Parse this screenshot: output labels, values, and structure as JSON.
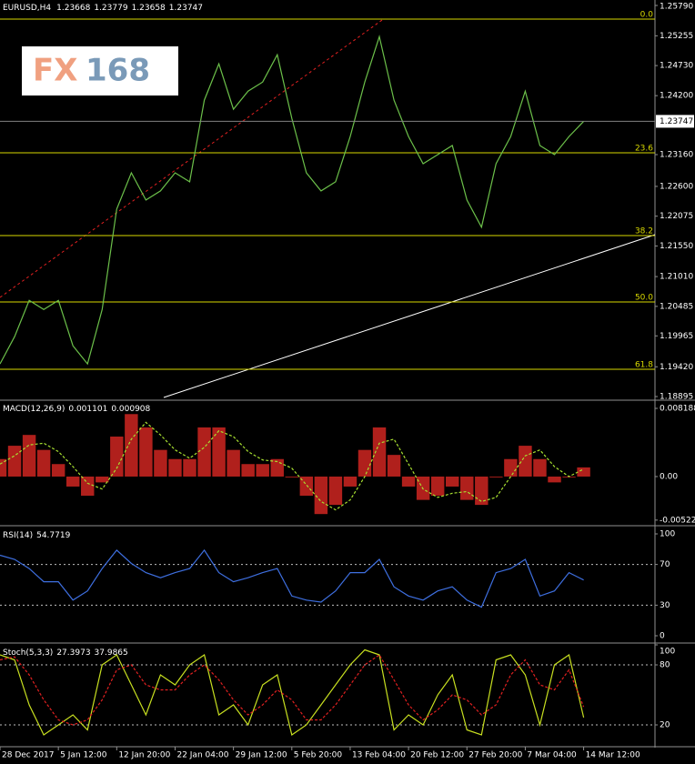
{
  "header": {
    "title": "EURUSD,H4",
    "ohlc": [
      1.23668,
      1.23779,
      1.23658,
      1.23747
    ]
  },
  "logo": {
    "left": "FX",
    "right": "168"
  },
  "chart_data": [
    {
      "type": "line",
      "title": "EURUSD,H4",
      "color": "#6cc04a",
      "x": [
        0,
        9,
        18,
        27,
        36,
        45,
        54,
        63,
        72,
        81,
        90,
        99,
        108,
        117,
        126,
        135,
        144,
        153,
        162,
        171,
        180,
        189,
        198,
        207,
        216,
        225,
        234,
        243,
        252,
        261,
        270,
        279,
        288,
        297,
        306,
        315,
        324,
        333,
        342,
        351,
        360
      ],
      "values": [
        1.1947,
        1.1995,
        1.2059,
        1.2043,
        1.2059,
        1.1979,
        1.1947,
        1.2043,
        1.222,
        1.2284,
        1.2236,
        1.2252,
        1.2284,
        1.2268,
        1.2412,
        1.2476,
        1.2396,
        1.2428,
        1.2444,
        1.2492,
        1.238,
        1.2284,
        1.2252,
        1.2268,
        1.2348,
        1.2444,
        1.2524,
        1.2412,
        1.2348,
        1.23,
        1.2316,
        1.2332,
        1.2236,
        1.2188,
        1.23,
        1.2348,
        1.2428,
        1.2332,
        1.2316,
        1.2348,
        1.23747
      ],
      "xlim": [
        0,
        404
      ],
      "ylim": [
        1.18831,
        1.25886
      ],
      "yticks": [
        {
          "value": 1.2579,
          "label": "1.25790"
        },
        {
          "value": 1.25255,
          "label": "1.25255"
        },
        {
          "value": 1.2473,
          "label": "1.24730"
        },
        {
          "value": 1.242,
          "label": "1.24200"
        },
        {
          "value": 1.2316,
          "label": "1.23160"
        },
        {
          "value": 1.226,
          "label": "1.22600"
        },
        {
          "value": 1.22075,
          "label": "1.22075"
        },
        {
          "value": 1.2155,
          "label": "1.21550"
        },
        {
          "value": 1.2101,
          "label": "1.21010"
        },
        {
          "value": 1.20485,
          "label": "1.20485"
        },
        {
          "value": 1.19965,
          "label": "1.19965"
        },
        {
          "value": 1.1942,
          "label": "1.19420"
        },
        {
          "value": 1.18895,
          "label": "1.18895"
        }
      ],
      "levels": [
        {
          "label": "0.0",
          "value": 1.2555
        },
        {
          "label": "23.6",
          "value": 1.23192
        },
        {
          "label": "38.2",
          "value": 1.21733
        },
        {
          "label": "50.0",
          "value": 1.20563
        },
        {
          "label": "61.8",
          "value": 1.19376
        }
      ],
      "level_color": "#d8d800"
    },
    {
      "type": "bar",
      "title": "MACD(12,26,9)",
      "readout": [
        0.001101,
        0.000908
      ],
      "x": [
        0,
        9,
        18,
        27,
        36,
        45,
        54,
        63,
        72,
        81,
        90,
        99,
        108,
        117,
        126,
        135,
        144,
        153,
        162,
        171,
        180,
        189,
        198,
        207,
        216,
        225,
        234,
        243,
        252,
        261,
        270,
        279,
        288,
        297,
        306,
        315,
        324,
        333,
        342,
        351,
        360
      ],
      "xlim": [
        0,
        404
      ],
      "ylim": [
        -0.00579,
        0.00906
      ],
      "yticks": [
        0.008188,
        {
          "value": 0,
          "label": "0.00"
        },
        -0.005226
      ],
      "series": [
        {
          "type": "bar",
          "color": "#b0201c",
          "values": [
            0.0021,
            0.0037,
            0.005,
            0.0032,
            0.0015,
            -0.0012,
            -0.0023,
            -0.0007,
            0.0048,
            0.0075,
            0.0059,
            0.0032,
            0.0021,
            0.0021,
            0.0059,
            0.0059,
            0.0032,
            0.0015,
            0.0015,
            0.0021,
            -0.0001,
            -0.0023,
            -0.0045,
            -0.0034,
            -0.0012,
            0.0032,
            0.0059,
            0.0026,
            -0.0012,
            -0.0028,
            -0.0023,
            -0.0012,
            -0.0028,
            -0.0034,
            -0.0001,
            0.0021,
            0.0037,
            0.0021,
            -0.0007,
            -0.0001,
            0.0011
          ]
        },
        {
          "type": "line",
          "dash": true,
          "color": "#a8e030",
          "values": [
            0.0015,
            0.0025,
            0.0038,
            0.004,
            0.003,
            0.0012,
            -0.0008,
            -0.0015,
            0.001,
            0.0045,
            0.0065,
            0.005,
            0.0032,
            0.0022,
            0.0035,
            0.0055,
            0.0048,
            0.003,
            0.002,
            0.0018,
            0.001,
            -0.001,
            -0.003,
            -0.004,
            -0.0028,
            0.0,
            0.004,
            0.0045,
            0.0015,
            -0.0015,
            -0.0025,
            -0.002,
            -0.0018,
            -0.003,
            -0.0025,
            0.0,
            0.0025,
            0.0032,
            0.0012,
            0.0,
            0.0009
          ]
        }
      ]
    },
    {
      "type": "line",
      "title": "RSI(14)",
      "readout": [
        54.7719
      ],
      "color": "#3e6fe0",
      "x": [
        0,
        9,
        18,
        27,
        36,
        45,
        54,
        63,
        72,
        81,
        90,
        99,
        108,
        117,
        126,
        135,
        144,
        153,
        162,
        171,
        180,
        189,
        198,
        207,
        216,
        225,
        234,
        243,
        252,
        261,
        270,
        279,
        288,
        297,
        306,
        315,
        324,
        333,
        342,
        351,
        360
      ],
      "values": [
        79,
        75,
        66,
        53,
        53,
        35,
        44,
        66,
        84,
        71,
        62,
        57,
        62,
        66,
        84,
        62,
        53,
        57,
        62,
        66,
        39,
        35,
        33,
        44,
        62,
        62,
        75,
        48,
        39,
        35,
        44,
        48,
        35,
        28,
        62,
        66,
        75,
        39,
        44,
        62,
        54.7719
      ],
      "xlim": [
        0,
        404
      ],
      "ylim": [
        -6.25,
        106.25
      ],
      "yticks": [
        0,
        30,
        70,
        100
      ],
      "levels": [
        70,
        30
      ],
      "level_color": "#c0c0c0"
    },
    {
      "type": "line",
      "title": "Stoch(5,3,3)",
      "readout": [
        27.3973,
        37.9865
      ],
      "x": [
        0,
        9,
        18,
        27,
        36,
        45,
        54,
        63,
        72,
        81,
        90,
        99,
        108,
        117,
        126,
        135,
        144,
        153,
        162,
        171,
        180,
        189,
        198,
        207,
        216,
        225,
        234,
        243,
        252,
        261,
        270,
        279,
        288,
        297,
        306,
        315,
        324,
        333,
        342,
        351,
        360
      ],
      "xlim": [
        0,
        404
      ],
      "ylim": [
        -0.9,
        100
      ],
      "yticks": [
        20,
        80,
        100
      ],
      "levels": [
        80,
        20
      ],
      "level_color": "#c0c0c0",
      "xticks": [
        {
          "value": 0,
          "label": "28 Dec 2017"
        },
        {
          "value": 36,
          "label": "5 Jan 12:00"
        },
        {
          "value": 72,
          "label": "12 Jan 20:00"
        },
        {
          "value": 108,
          "label": "22 Jan 04:00"
        },
        {
          "value": 144,
          "label": "29 Jan 12:00"
        },
        {
          "value": 180,
          "label": "5 Feb 20:00"
        },
        {
          "value": 216,
          "label": "13 Feb 04:00"
        },
        {
          "value": 252,
          "label": "20 Feb 12:00"
        },
        {
          "value": 288,
          "label": "27 Feb 20:00"
        },
        {
          "value": 324,
          "label": "7 Mar 04:00"
        },
        {
          "value": 360,
          "label": "14 Mar 12:00"
        }
      ],
      "series": [
        {
          "type": "line",
          "color": "#c8e020",
          "values": [
            90,
            85,
            40,
            10,
            20,
            30,
            15,
            80,
            90,
            60,
            30,
            70,
            60,
            80,
            90,
            30,
            40,
            20,
            60,
            70,
            10,
            20,
            40,
            60,
            80,
            95,
            90,
            15,
            30,
            20,
            50,
            70,
            15,
            10,
            85,
            90,
            70,
            20,
            80,
            90,
            27.3973
          ]
        },
        {
          "type": "line",
          "dash": true,
          "color": "#e02020",
          "values": [
            85,
            88,
            70,
            45,
            25,
            20,
            25,
            45,
            75,
            80,
            60,
            55,
            55,
            70,
            80,
            65,
            45,
            30,
            40,
            55,
            45,
            25,
            25,
            40,
            60,
            80,
            90,
            65,
            40,
            25,
            35,
            50,
            45,
            30,
            40,
            70,
            85,
            60,
            55,
            75,
            37.9865
          ]
        }
      ]
    }
  ]
}
